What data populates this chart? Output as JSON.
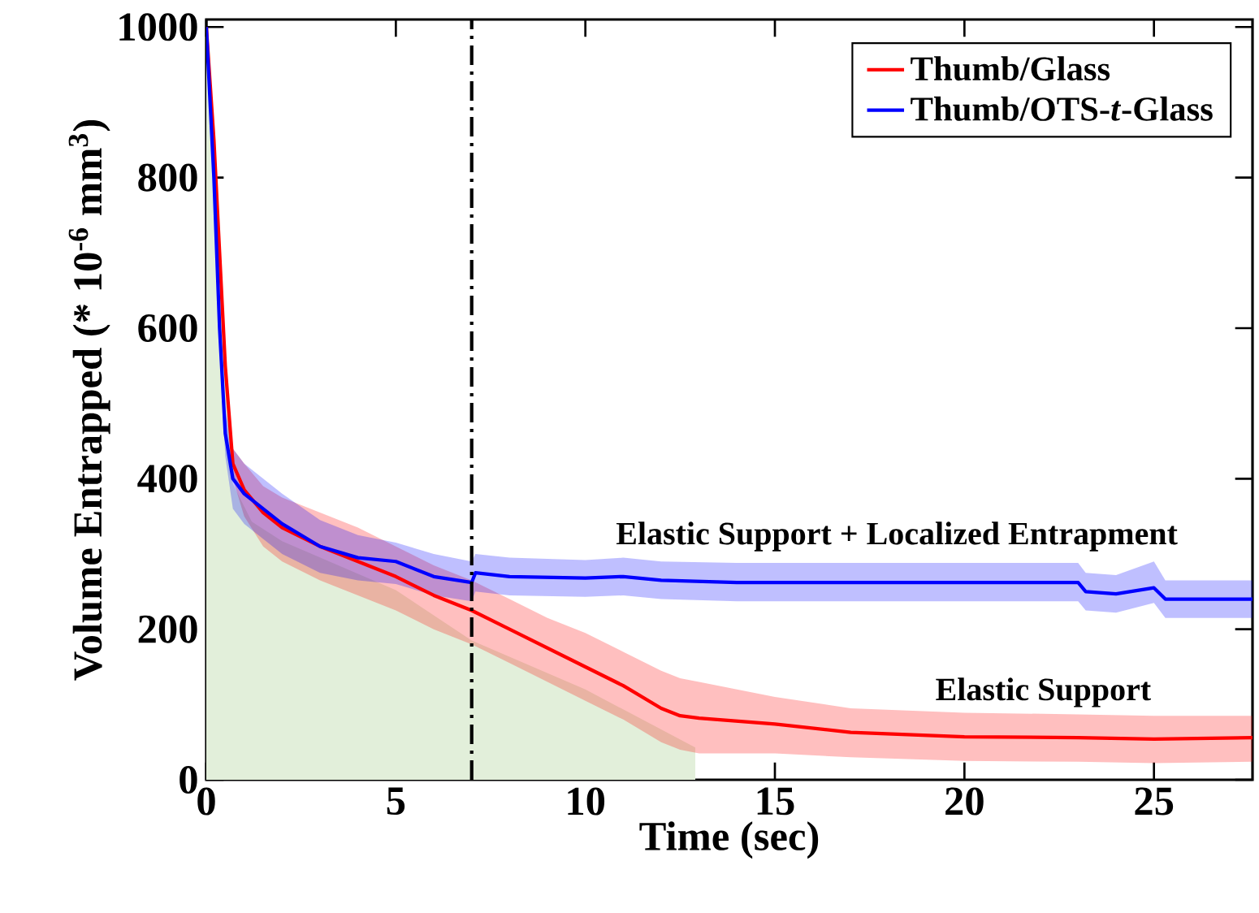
{
  "chart_data": {
    "type": "line",
    "xlabel": "Time (sec)",
    "ylabel": "Volume Entrapped (* 10$^{-6}$ mm$^{3}$)",
    "xlim": [
      0,
      27.6
    ],
    "ylim": [
      0,
      1010
    ],
    "xticks": [
      0,
      5,
      10,
      15,
      20,
      25
    ],
    "yticks": [
      0,
      200,
      400,
      600,
      800,
      1000
    ],
    "legend": "top right",
    "series": [
      {
        "name": "Thumb/Glass",
        "color": "#ff0000",
        "x": [
          0,
          0.2,
          0.35,
          0.5,
          0.7,
          1,
          1.5,
          2,
          3,
          4,
          5,
          6,
          7,
          8,
          9,
          10,
          11,
          12,
          12.5,
          13,
          15,
          17,
          20,
          23,
          25,
          27.6
        ],
        "values": [
          1000,
          850,
          700,
          550,
          420,
          385,
          355,
          335,
          310,
          290,
          270,
          245,
          225,
          200,
          175,
          150,
          125,
          95,
          85,
          82,
          74,
          63,
          57,
          56,
          54,
          56
        ],
        "upper": [
          1000,
          860,
          720,
          570,
          440,
          420,
          390,
          375,
          355,
          335,
          310,
          285,
          265,
          240,
          215,
          195,
          170,
          145,
          135,
          130,
          110,
          95,
          89,
          87,
          85,
          85
        ],
        "lower": [
          1000,
          840,
          680,
          530,
          400,
          350,
          310,
          290,
          265,
          245,
          225,
          200,
          180,
          155,
          130,
          105,
          80,
          50,
          40,
          35,
          35,
          30,
          25,
          24,
          22,
          24
        ]
      },
      {
        "name": "Thumb/OTS-*t*-Glass",
        "color": "#0000ff",
        "x": [
          0,
          0.2,
          0.35,
          0.5,
          0.7,
          1,
          2,
          3,
          4,
          5,
          6,
          7,
          7.1,
          8,
          10,
          11,
          12,
          14,
          20,
          23,
          23.2,
          24,
          25,
          25.3,
          27.6
        ],
        "values": [
          1000,
          800,
          600,
          460,
          400,
          380,
          340,
          310,
          295,
          290,
          270,
          262,
          275,
          270,
          268,
          270,
          265,
          262,
          262,
          262,
          250,
          247,
          255,
          240,
          240
        ],
        "upper": [
          1000,
          820,
          630,
          490,
          440,
          420,
          380,
          345,
          325,
          315,
          300,
          290,
          300,
          295,
          292,
          295,
          290,
          288,
          288,
          288,
          275,
          272,
          290,
          265,
          265
        ],
        "lower": [
          1000,
          780,
          570,
          430,
          360,
          340,
          300,
          275,
          265,
          260,
          245,
          237,
          250,
          245,
          243,
          245,
          240,
          237,
          237,
          237,
          225,
          222,
          235,
          215,
          215
        ]
      },
      {
        "type": "area",
        "color": "#e2efda",
        "x": [
          0,
          0.3,
          0.7,
          1.2,
          2,
          5,
          7,
          10,
          12.9
        ],
        "values": [
          1000,
          700,
          393,
          343,
          317,
          252,
          185,
          120,
          43
        ]
      }
    ],
    "ref_lines": [
      {
        "axis": "x",
        "value": 7,
        "color": "#000000",
        "line_style": "dashdot"
      }
    ],
    "annotations": [
      "Elastic Support + Localized Entrapment",
      "Elastic Support"
    ]
  }
}
